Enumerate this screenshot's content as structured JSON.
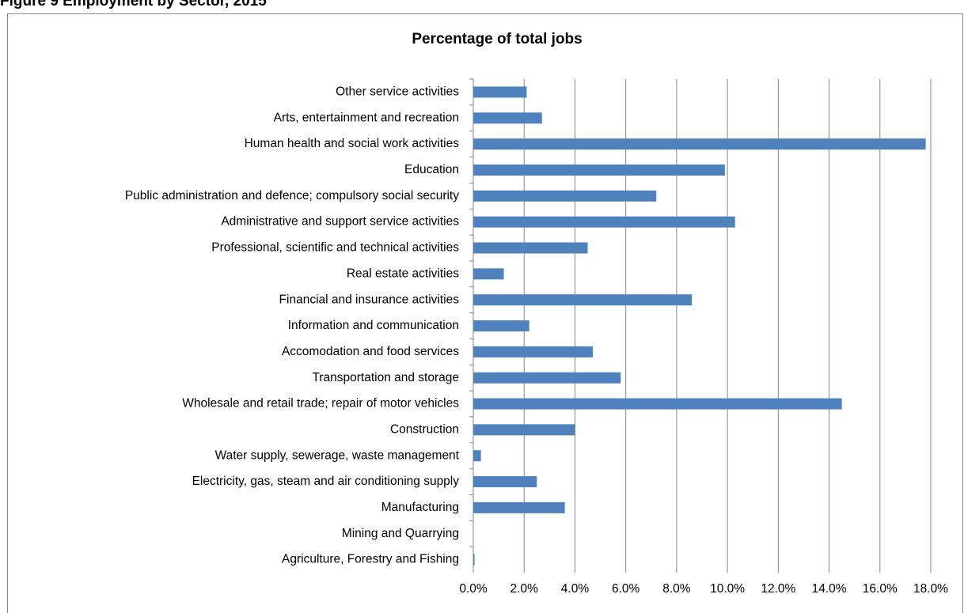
{
  "header": "Figure 9 Employment by Sector, 2015",
  "chart_data": {
    "type": "hbar",
    "title": "Percentage of total jobs",
    "categories": [
      "Other service activities",
      "Arts, entertainment and recreation",
      "Human health and social work activities",
      "Education",
      "Public administration and defence; compulsory social security",
      "Administrative and support service activities",
      "Professional, scientific and technical activities",
      "Real estate activities",
      "Financial and insurance activities",
      "Information and communication",
      "Accomodation and food services",
      "Transportation and storage",
      "Wholesale and retail trade; repair of motor vehicles",
      "Construction",
      "Water supply, sewerage, waste management",
      "Electricity, gas, steam and air conditioning supply",
      "Manufacturing",
      "Mining and Quarrying",
      "Agriculture, Forestry and Fishing"
    ],
    "values": [
      2.1,
      2.7,
      17.8,
      9.9,
      7.2,
      10.3,
      4.5,
      1.2,
      8.6,
      2.2,
      4.7,
      5.8,
      14.5,
      4.0,
      0.3,
      2.5,
      3.6,
      0,
      0.05
    ],
    "color": "#4f81bd",
    "xlim": [
      0,
      18
    ],
    "xticks": [
      {
        "value": 0,
        "label": "0.0%"
      },
      {
        "value": 2,
        "label": "2.0%"
      },
      {
        "value": 4,
        "label": "4.0%"
      },
      {
        "value": 6,
        "label": "6.0%"
      },
      {
        "value": 8,
        "label": "8.0%"
      },
      {
        "value": 10,
        "label": "10.0%"
      },
      {
        "value": 12,
        "label": "12.0%"
      },
      {
        "value": 14,
        "label": "14.0%"
      },
      {
        "value": 16,
        "label": "16.0%"
      },
      {
        "value": 18,
        "label": "18.0%"
      }
    ],
    "grid": true
  }
}
